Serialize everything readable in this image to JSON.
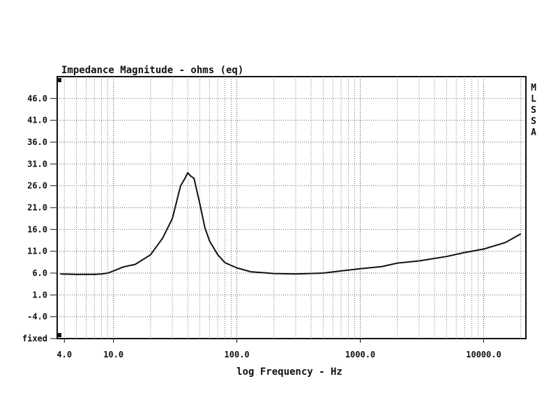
{
  "chart_data": {
    "type": "line",
    "title": "Impedance Magnitude - ohms (eq)",
    "xlabel": "log Frequency - Hz",
    "ylabel": "",
    "side_label": "MLSSA",
    "x_scale": "log",
    "xlim": [
      3.5,
      22000
    ],
    "ylim": [
      -9,
      51
    ],
    "grid": true,
    "x_tick_labels": [
      {
        "value": 4,
        "label": "4.0"
      },
      {
        "value": 10,
        "label": "10.0"
      },
      {
        "value": 100,
        "label": "100.0"
      },
      {
        "value": 1000,
        "label": "1000.0"
      },
      {
        "value": 10000,
        "label": "10000.0"
      }
    ],
    "y_tick_labels": [
      {
        "value": 46,
        "label": "46.0"
      },
      {
        "value": 41,
        "label": "41.0"
      },
      {
        "value": 36,
        "label": "36.0"
      },
      {
        "value": 31,
        "label": "31.0"
      },
      {
        "value": 26,
        "label": "26.0"
      },
      {
        "value": 21,
        "label": "21.0"
      },
      {
        "value": 16,
        "label": "16.0"
      },
      {
        "value": 11,
        "label": "11.0"
      },
      {
        "value": 6,
        "label": "6.0"
      },
      {
        "value": 1,
        "label": "1.0"
      },
      {
        "value": -4,
        "label": "-4.0"
      },
      {
        "value": -9,
        "label": "fixed"
      }
    ],
    "series": [
      {
        "x": [
          3.7,
          5,
          7,
          8,
          9,
          10,
          12,
          15,
          20,
          25,
          30,
          35,
          38,
          40,
          42,
          45,
          50,
          55,
          60,
          70,
          80,
          100,
          130,
          200,
          300,
          500,
          700,
          1000,
          1500,
          2000,
          3000,
          5000,
          7000,
          10000,
          15000,
          20000
        ],
        "y": [
          5.8,
          5.7,
          5.7,
          5.8,
          6.0,
          6.5,
          7.4,
          8.0,
          10.2,
          14.0,
          18.5,
          26.0,
          27.7,
          29.0,
          28.3,
          27.7,
          22.0,
          16.5,
          13.4,
          10.2,
          8.4,
          7.2,
          6.3,
          5.9,
          5.8,
          6.0,
          6.5,
          7.0,
          7.5,
          8.3,
          8.8,
          9.8,
          10.7,
          11.5,
          13.0,
          15.0
        ]
      }
    ]
  }
}
